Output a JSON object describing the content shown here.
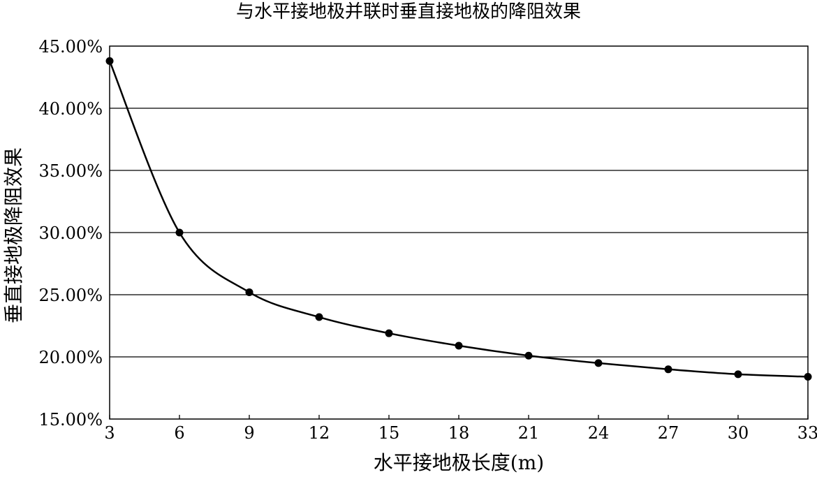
{
  "chart_data": {
    "type": "line",
    "title": "与水平接地极并联时垂直接地极的降阻效果",
    "xlabel": "水平接地极长度(m)",
    "ylabel": "垂直接地极降阻效果",
    "x": [
      3,
      6,
      9,
      12,
      15,
      18,
      21,
      24,
      27,
      30,
      33
    ],
    "series": [
      {
        "values": [
          43.8,
          30.0,
          25.2,
          23.2,
          21.9,
          20.9,
          20.1,
          19.5,
          19.0,
          18.6,
          18.4
        ]
      }
    ],
    "xlim": [
      3,
      33
    ],
    "ylim": [
      15,
      45
    ],
    "xticks": [
      "3",
      "6",
      "9",
      "12",
      "15",
      "18",
      "21",
      "24",
      "27",
      "30",
      "33"
    ],
    "yticks": [
      "15.00%",
      "20.00%",
      "25.00%",
      "30.00%",
      "35.00%",
      "40.00%",
      "45.00%"
    ],
    "grid": "horizontal",
    "markers": "circle",
    "line_color": "#000000"
  }
}
